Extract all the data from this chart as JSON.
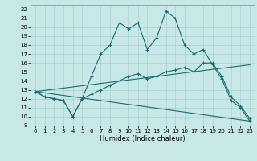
{
  "title": "",
  "xlabel": "Humidex (Indice chaleur)",
  "bg_color": "#c8e8e8",
  "grid_color": "#a8d0d0",
  "line_color": "#1a6b6b",
  "xlim": [
    -0.5,
    23.5
  ],
  "ylim": [
    9,
    22.5
  ],
  "yticks": [
    9,
    10,
    11,
    12,
    13,
    14,
    15,
    16,
    17,
    18,
    19,
    20,
    21,
    22
  ],
  "xticks": [
    0,
    1,
    2,
    3,
    4,
    5,
    6,
    7,
    8,
    9,
    10,
    11,
    12,
    13,
    14,
    15,
    16,
    17,
    18,
    19,
    20,
    21,
    22,
    23
  ],
  "line1_x": [
    0,
    1,
    2,
    3,
    4,
    5,
    6,
    7,
    8,
    9,
    10,
    11,
    12,
    13,
    14,
    15,
    16,
    17,
    18,
    19,
    20,
    21,
    22,
    23
  ],
  "line1_y": [
    12.8,
    12.2,
    12.0,
    11.8,
    10.0,
    12.0,
    14.5,
    17.0,
    18.0,
    20.5,
    19.8,
    20.5,
    17.5,
    18.8,
    21.8,
    21.0,
    18.0,
    17.0,
    17.5,
    15.8,
    14.2,
    11.8,
    11.0,
    9.5
  ],
  "line2_x": [
    0,
    1,
    2,
    3,
    4,
    5,
    6,
    7,
    8,
    9,
    10,
    11,
    12,
    13,
    14,
    15,
    16,
    17,
    18,
    19,
    20,
    21,
    22,
    23
  ],
  "line2_y": [
    12.8,
    12.2,
    12.0,
    11.8,
    10.0,
    12.0,
    12.5,
    13.0,
    13.5,
    14.0,
    14.5,
    14.8,
    14.2,
    14.5,
    15.0,
    15.2,
    15.5,
    15.0,
    16.0,
    16.0,
    14.5,
    12.2,
    11.2,
    9.8
  ],
  "line3_x": [
    0,
    23
  ],
  "line3_y": [
    12.8,
    9.5
  ],
  "line4_x": [
    0,
    23
  ],
  "line4_y": [
    12.8,
    15.8
  ],
  "tick_fontsize": 5,
  "xlabel_fontsize": 6
}
